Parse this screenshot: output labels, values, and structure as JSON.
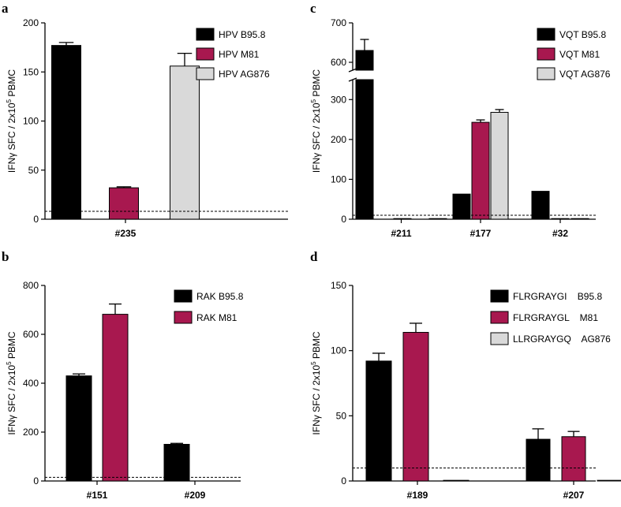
{
  "colors": {
    "B95.8": "#000000",
    "M81": "#a8184f",
    "AG876": "#d9d9d9",
    "outline": "#000000"
  },
  "chart_data": [
    {
      "panel": "a",
      "type": "bar",
      "ylabel_main": "IFNγ SFC / 2x10",
      "ylabel_sup": "5",
      "ylabel_tail": " PBMC",
      "ylim": [
        0,
        200
      ],
      "yticks": [
        0,
        50,
        100,
        150,
        200
      ],
      "threshold": 8,
      "categories": [
        "#235"
      ],
      "series": [
        {
          "name": "HPV B95.8",
          "color_key": "B95.8",
          "values": [
            177
          ],
          "errors": [
            3
          ]
        },
        {
          "name": "HPV M81",
          "color_key": "M81",
          "values": [
            32
          ],
          "errors": [
            1
          ]
        },
        {
          "name": "HPV AG876",
          "color_key": "AG876",
          "values": [
            156
          ],
          "errors": [
            13
          ]
        }
      ]
    },
    {
      "panel": "c",
      "type": "bar",
      "ylabel_main": "IFNγ SFC / 2x10",
      "ylabel_sup": "5",
      "ylabel_tail": " PBMC",
      "ylim": [
        0,
        700
      ],
      "axis_break": [
        350,
        580
      ],
      "yticks": [
        0,
        100,
        200,
        300,
        600,
        700
      ],
      "threshold": 10,
      "categories": [
        "#211",
        "#177",
        "#32"
      ],
      "series": [
        {
          "name": "VQT B95.8",
          "color_key": "B95.8",
          "values": [
            630,
            63,
            70
          ],
          "errors": [
            28,
            0,
            0
          ]
        },
        {
          "name": "VQT M81",
          "color_key": "M81",
          "values": [
            0,
            243,
            0
          ],
          "errors": [
            0,
            6,
            0
          ]
        },
        {
          "name": "VQT AG876",
          "color_key": "AG876",
          "values": [
            0,
            268,
            0
          ],
          "errors": [
            0,
            7,
            0
          ]
        }
      ]
    },
    {
      "panel": "b",
      "type": "bar",
      "ylabel_main": "IFNγ SFC / 2x10",
      "ylabel_sup": "5",
      "ylabel_tail": " PBMC",
      "ylim": [
        0,
        800
      ],
      "yticks": [
        0,
        200,
        400,
        600,
        800
      ],
      "threshold": 15,
      "categories": [
        "#151",
        "#209"
      ],
      "series": [
        {
          "name": "RAK B95.8",
          "color_key": "B95.8",
          "values": [
            430,
            150
          ],
          "errors": [
            8,
            4
          ]
        },
        {
          "name": "RAK M81",
          "color_key": "M81",
          "values": [
            682,
            null
          ],
          "errors": [
            42,
            0
          ]
        }
      ]
    },
    {
      "panel": "d",
      "type": "bar",
      "ylabel_main": "IFNγ SFC / 2x10",
      "ylabel_sup": "5",
      "ylabel_tail": " PBMC",
      "ylim": [
        0,
        150
      ],
      "yticks": [
        0,
        50,
        100,
        150
      ],
      "threshold": 10,
      "categories": [
        "#189",
        "#207"
      ],
      "series": [
        {
          "name": "FLRGRAYGI    B95.8",
          "color_key": "B95.8",
          "values": [
            92,
            32
          ],
          "errors": [
            6,
            8
          ]
        },
        {
          "name": "FLRGRAYGL    M81",
          "color_key": "M81",
          "values": [
            114,
            34
          ],
          "errors": [
            7,
            4
          ]
        },
        {
          "name": "LLRGRAYGQ    AG876",
          "color_key": "AG876",
          "values": [
            0.5,
            0.5
          ],
          "errors": [
            0,
            0
          ]
        }
      ]
    }
  ]
}
